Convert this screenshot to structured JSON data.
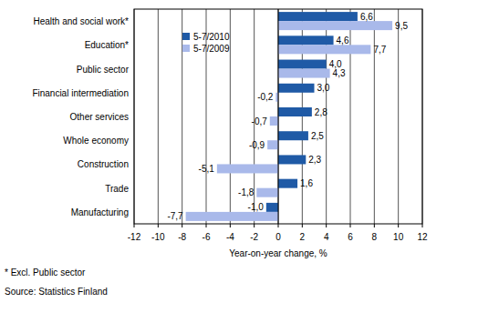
{
  "chart_data": {
    "type": "bar",
    "orientation": "horizontal",
    "categories": [
      "Health and social work*",
      "Education*",
      "Public sector",
      "Financial intermediation",
      "Other services",
      "Whole economy",
      "Construction",
      "Trade",
      "Manufacturing"
    ],
    "series": [
      {
        "name": "5-7/2010",
        "color": "#1f5aa6",
        "values": [
          6.6,
          4.6,
          4.0,
          3.0,
          2.8,
          2.5,
          2.3,
          1.6,
          -1.0
        ],
        "value_labels": [
          "6,6",
          "4,6",
          "4,0",
          "3,0",
          "2,8",
          "2,5",
          "2,3",
          "1,6",
          "-1,0"
        ]
      },
      {
        "name": "5-7/2009",
        "color": "#a9b9ea",
        "values": [
          9.5,
          7.7,
          4.3,
          -0.2,
          -0.7,
          -0.9,
          -5.1,
          -1.8,
          -7.7
        ],
        "value_labels": [
          "9,5",
          "7,7",
          "4,3",
          "-0,2",
          "-0,7",
          "-0,9",
          "-5,1",
          "-1,8",
          "-7,7"
        ]
      }
    ],
    "xlim": [
      -12,
      12
    ],
    "xticks": [
      -12,
      -10,
      -8,
      -6,
      -4,
      -2,
      0,
      2,
      4,
      6,
      8,
      10,
      12
    ],
    "xlabel": "Year-on-year change, %",
    "annotations": [
      "* Excl. Public sector",
      "Source: Statistics Finland"
    ],
    "grid": true,
    "legend": "top",
    "data_labels": true
  }
}
